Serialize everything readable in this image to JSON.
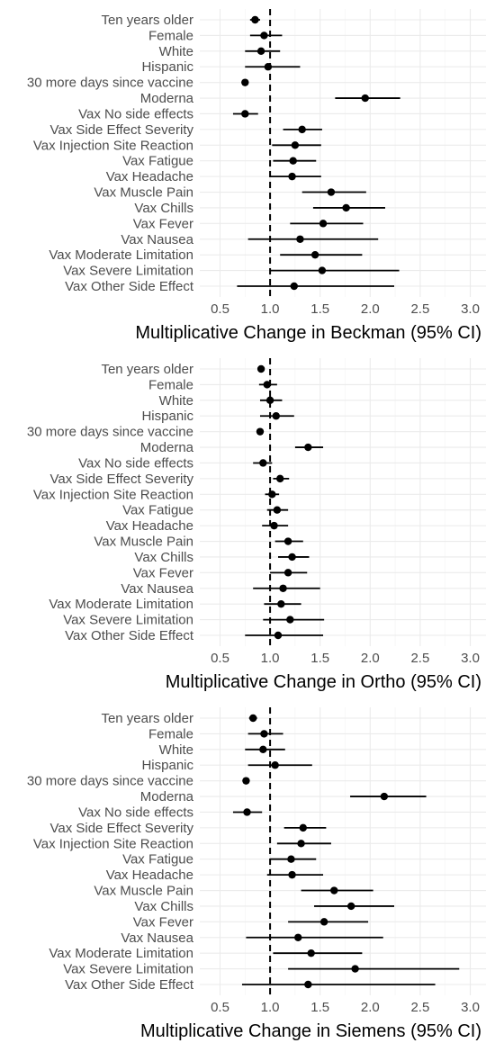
{
  "chart_data": [
    {
      "type": "forest",
      "xlabel": "Multiplicative Change in Beckman (95% CI)",
      "xlim": [
        0.5,
        3.0
      ],
      "xticks": [
        0.5,
        1.0,
        1.5,
        2.0,
        2.5,
        3.0
      ],
      "xtick_labels": [
        "0.5",
        "1.0",
        "1.5",
        "2.0",
        "2.5",
        "3.0"
      ],
      "reference_line": 1.0,
      "grid": true,
      "categories": [
        "Ten years older",
        "Female",
        "White",
        "Hispanic",
        "30 more days since vaccine",
        "Moderna",
        "Vax No side effects",
        "Vax Side Effect Severity",
        "Vax Injection Site Reaction",
        "Vax Fatigue",
        "Vax Headache",
        "Vax Muscle Pain",
        "Vax Chills",
        "Vax Fever",
        "Vax Nausea",
        "Vax Moderate Limitation",
        "Vax Severe Limitation",
        "Vax Other Side Effect"
      ],
      "estimate": [
        0.85,
        0.94,
        0.91,
        0.98,
        0.75,
        1.95,
        0.75,
        1.32,
        1.25,
        1.23,
        1.22,
        1.61,
        1.76,
        1.53,
        1.3,
        1.45,
        1.52,
        1.24
      ],
      "lower": [
        0.8,
        0.8,
        0.75,
        0.75,
        0.72,
        1.65,
        0.63,
        1.13,
        1.02,
        1.03,
        1.0,
        1.32,
        1.43,
        1.2,
        0.78,
        1.1,
        1.0,
        0.67
      ],
      "upper": [
        0.9,
        1.12,
        1.1,
        1.3,
        0.78,
        2.3,
        0.88,
        1.52,
        1.51,
        1.46,
        1.51,
        1.96,
        2.15,
        1.93,
        2.08,
        1.92,
        2.29,
        2.24
      ]
    },
    {
      "type": "forest",
      "xlabel": "Multiplicative Change in Ortho (95% CI)",
      "xlim": [
        0.5,
        3.0
      ],
      "xticks": [
        0.5,
        1.0,
        1.5,
        2.0,
        2.5,
        3.0
      ],
      "xtick_labels": [
        "0.5",
        "1.0",
        "1.5",
        "2.0",
        "2.5",
        "3.0"
      ],
      "reference_line": 1.0,
      "grid": true,
      "categories": [
        "Ten years older",
        "Female",
        "White",
        "Hispanic",
        "30 more days since vaccine",
        "Moderna",
        "Vax No side effects",
        "Vax Side Effect Severity",
        "Vax Injection Site Reaction",
        "Vax Fatigue",
        "Vax Headache",
        "Vax Muscle Pain",
        "Vax Chills",
        "Vax Fever",
        "Vax Nausea",
        "Vax Moderate Limitation",
        "Vax Severe Limitation",
        "Vax Other Side Effect"
      ],
      "estimate": [
        0.91,
        0.97,
        1.0,
        1.06,
        0.9,
        1.38,
        0.93,
        1.1,
        1.02,
        1.07,
        1.04,
        1.18,
        1.22,
        1.18,
        1.13,
        1.11,
        1.2,
        1.08
      ],
      "lower": [
        0.88,
        0.89,
        0.9,
        0.9,
        0.88,
        1.25,
        0.83,
        1.03,
        0.95,
        0.97,
        0.92,
        1.05,
        1.08,
        1.0,
        0.83,
        0.94,
        0.93,
        0.75
      ],
      "upper": [
        0.94,
        1.07,
        1.12,
        1.24,
        0.92,
        1.53,
        1.02,
        1.19,
        1.09,
        1.18,
        1.18,
        1.33,
        1.39,
        1.37,
        1.5,
        1.31,
        1.54,
        1.53
      ]
    },
    {
      "type": "forest",
      "xlabel": "Multiplicative Change in Siemens (95% CI)",
      "xlim": [
        0.5,
        3.0
      ],
      "xticks": [
        0.5,
        1.0,
        1.5,
        2.0,
        2.5,
        3.0
      ],
      "xtick_labels": [
        "0.5",
        "1.0",
        "1.5",
        "2.0",
        "2.5",
        "3.0"
      ],
      "reference_line": 1.0,
      "grid": true,
      "categories": [
        "Ten years older",
        "Female",
        "White",
        "Hispanic",
        "30 more days since vaccine",
        "Moderna",
        "Vax No side effects",
        "Vax Side Effect Severity",
        "Vax Injection Site Reaction",
        "Vax Fatigue",
        "Vax Headache",
        "Vax Muscle Pain",
        "Vax Chills",
        "Vax Fever",
        "Vax Nausea",
        "Vax Moderate Limitation",
        "Vax Severe Limitation",
        "Vax Other Side Effect"
      ],
      "estimate": [
        0.83,
        0.94,
        0.93,
        1.05,
        0.76,
        2.14,
        0.77,
        1.33,
        1.31,
        1.21,
        1.22,
        1.64,
        1.81,
        1.54,
        1.28,
        1.41,
        1.85,
        1.38
      ],
      "lower": [
        0.79,
        0.78,
        0.75,
        0.78,
        0.74,
        1.8,
        0.63,
        1.14,
        1.07,
        1.0,
        0.97,
        1.31,
        1.44,
        1.18,
        0.76,
        1.03,
        1.18,
        0.72
      ],
      "upper": [
        0.87,
        1.13,
        1.15,
        1.42,
        0.79,
        2.56,
        0.92,
        1.56,
        1.61,
        1.46,
        1.53,
        2.03,
        2.24,
        1.98,
        2.13,
        1.92,
        2.89,
        2.65
      ]
    }
  ]
}
